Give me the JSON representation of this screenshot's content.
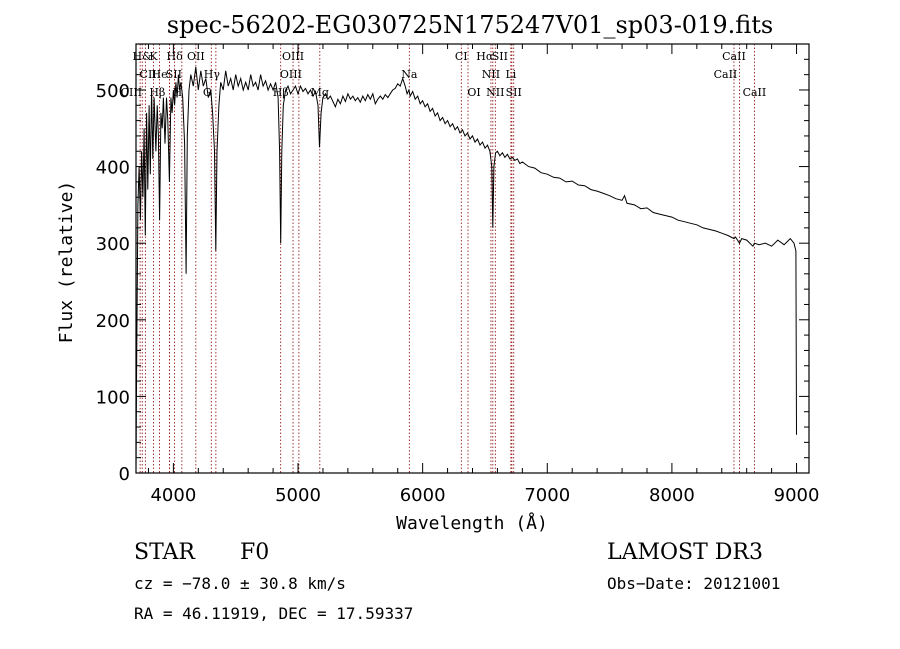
{
  "chart_data": {
    "type": "line",
    "title": "spec-56202-EG030725N175247V01_sp03-019.fits",
    "xlabel": "Wavelength (Å)",
    "ylabel": "Flux (relative)",
    "xlim": [
      3700,
      9100
    ],
    "ylim": [
      0,
      560
    ],
    "xticks": [
      4000,
      5000,
      6000,
      7000,
      8000,
      9000
    ],
    "yticks": [
      0,
      100,
      200,
      300,
      400,
      500
    ],
    "series": [
      {
        "name": "spectrum",
        "points": [
          [
            3700,
            5
          ],
          [
            3705,
            130
          ],
          [
            3715,
            350
          ],
          [
            3725,
            400
          ],
          [
            3735,
            330
          ],
          [
            3745,
            420
          ],
          [
            3755,
            360
          ],
          [
            3765,
            450
          ],
          [
            3775,
            310
          ],
          [
            3785,
            470
          ],
          [
            3795,
            370
          ],
          [
            3805,
            480
          ],
          [
            3815,
            390
          ],
          [
            3825,
            500
          ],
          [
            3835,
            410
          ],
          [
            3845,
            490
          ],
          [
            3860,
            420
          ],
          [
            3870,
            480
          ],
          [
            3880,
            440
          ],
          [
            3889,
            330
          ],
          [
            3900,
            470
          ],
          [
            3910,
            450
          ],
          [
            3920,
            490
          ],
          [
            3933,
            430
          ],
          [
            3945,
            490
          ],
          [
            3955,
            460
          ],
          [
            3968,
            380
          ],
          [
            3980,
            490
          ],
          [
            3990,
            470
          ],
          [
            4000,
            500
          ],
          [
            4010,
            480
          ],
          [
            4020,
            510
          ],
          [
            4030,
            490
          ],
          [
            4040,
            520
          ],
          [
            4050,
            500
          ],
          [
            4060,
            510
          ],
          [
            4075,
            490
          ],
          [
            4090,
            430
          ],
          [
            4102,
            260
          ],
          [
            4112,
            440
          ],
          [
            4125,
            500
          ],
          [
            4140,
            520
          ],
          [
            4160,
            505
          ],
          [
            4180,
            530
          ],
          [
            4200,
            500
          ],
          [
            4220,
            525
          ],
          [
            4240,
            505
          ],
          [
            4260,
            515
          ],
          [
            4280,
            490
          ],
          [
            4300,
            500
          ],
          [
            4315,
            470
          ],
          [
            4330,
            420
          ],
          [
            4340,
            290
          ],
          [
            4350,
            420
          ],
          [
            4365,
            480
          ],
          [
            4380,
            510
          ],
          [
            4400,
            500
          ],
          [
            4420,
            525
          ],
          [
            4440,
            505
          ],
          [
            4460,
            515
          ],
          [
            4480,
            500
          ],
          [
            4500,
            520
          ],
          [
            4520,
            505
          ],
          [
            4540,
            515
          ],
          [
            4560,
            500
          ],
          [
            4580,
            510
          ],
          [
            4600,
            500
          ],
          [
            4620,
            520
          ],
          [
            4640,
            505
          ],
          [
            4660,
            510
          ],
          [
            4680,
            500
          ],
          [
            4700,
            520
          ],
          [
            4720,
            505
          ],
          [
            4740,
            512
          ],
          [
            4760,
            500
          ],
          [
            4780,
            508
          ],
          [
            4800,
            500
          ],
          [
            4820,
            510
          ],
          [
            4840,
            490
          ],
          [
            4852,
            420
          ],
          [
            4861,
            300
          ],
          [
            4870,
            420
          ],
          [
            4882,
            480
          ],
          [
            4900,
            500
          ],
          [
            4920,
            505
          ],
          [
            4940,
            495
          ],
          [
            4960,
            500
          ],
          [
            4980,
            505
          ],
          [
            5000,
            495
          ],
          [
            5020,
            505
          ],
          [
            5040,
            498
          ],
          [
            5060,
            502
          ],
          [
            5080,
            495
          ],
          [
            5100,
            500
          ],
          [
            5120,
            492
          ],
          [
            5140,
            498
          ],
          [
            5160,
            480
          ],
          [
            5172,
            425
          ],
          [
            5185,
            470
          ],
          [
            5200,
            490
          ],
          [
            5220,
            495
          ],
          [
            5240,
            488
          ],
          [
            5260,
            492
          ],
          [
            5280,
            485
          ],
          [
            5300,
            478
          ],
          [
            5320,
            488
          ],
          [
            5340,
            482
          ],
          [
            5360,
            492
          ],
          [
            5380,
            485
          ],
          [
            5400,
            495
          ],
          [
            5420,
            488
          ],
          [
            5440,
            492
          ],
          [
            5460,
            486
          ],
          [
            5480,
            490
          ],
          [
            5500,
            484
          ],
          [
            5520,
            492
          ],
          [
            5540,
            486
          ],
          [
            5560,
            494
          ],
          [
            5580,
            488
          ],
          [
            5600,
            495
          ],
          [
            5620,
            482
          ],
          [
            5640,
            488
          ],
          [
            5660,
            492
          ],
          [
            5680,
            488
          ],
          [
            5700,
            494
          ],
          [
            5720,
            490
          ],
          [
            5740,
            495
          ],
          [
            5760,
            500
          ],
          [
            5780,
            502
          ],
          [
            5800,
            508
          ],
          [
            5820,
            505
          ],
          [
            5840,
            515
          ],
          [
            5860,
            505
          ],
          [
            5875,
            495
          ],
          [
            5890,
            500
          ],
          [
            5900,
            492
          ],
          [
            5920,
            498
          ],
          [
            5940,
            488
          ],
          [
            5960,
            492
          ],
          [
            5980,
            482
          ],
          [
            6000,
            486
          ],
          [
            6020,
            478
          ],
          [
            6040,
            482
          ],
          [
            6060,
            472
          ],
          [
            6080,
            476
          ],
          [
            6100,
            466
          ],
          [
            6120,
            470
          ],
          [
            6140,
            460
          ],
          [
            6160,
            464
          ],
          [
            6180,
            456
          ],
          [
            6200,
            460
          ],
          [
            6220,
            452
          ],
          [
            6240,
            456
          ],
          [
            6260,
            448
          ],
          [
            6280,
            452
          ],
          [
            6300,
            444
          ],
          [
            6320,
            448
          ],
          [
            6340,
            440
          ],
          [
            6360,
            444
          ],
          [
            6380,
            436
          ],
          [
            6400,
            440
          ],
          [
            6420,
            432
          ],
          [
            6440,
            436
          ],
          [
            6460,
            428
          ],
          [
            6480,
            432
          ],
          [
            6500,
            424
          ],
          [
            6520,
            428
          ],
          [
            6540,
            420
          ],
          [
            6555,
            400
          ],
          [
            6563,
            320
          ],
          [
            6572,
            400
          ],
          [
            6585,
            418
          ],
          [
            6600,
            420
          ],
          [
            6620,
            414
          ],
          [
            6640,
            418
          ],
          [
            6660,
            412
          ],
          [
            6680,
            416
          ],
          [
            6700,
            410
          ],
          [
            6720,
            412
          ],
          [
            6740,
            408
          ],
          [
            6760,
            410
          ],
          [
            6780,
            404
          ],
          [
            6800,
            406
          ],
          [
            6850,
            400
          ],
          [
            6900,
            398
          ],
          [
            6950,
            392
          ],
          [
            7000,
            390
          ],
          [
            7050,
            386
          ],
          [
            7100,
            385
          ],
          [
            7150,
            380
          ],
          [
            7200,
            381
          ],
          [
            7250,
            376
          ],
          [
            7300,
            375
          ],
          [
            7350,
            370
          ],
          [
            7400,
            368
          ],
          [
            7450,
            365
          ],
          [
            7500,
            362
          ],
          [
            7550,
            358
          ],
          [
            7600,
            356
          ],
          [
            7620,
            362
          ],
          [
            7640,
            352
          ],
          [
            7700,
            350
          ],
          [
            7750,
            345
          ],
          [
            7800,
            346
          ],
          [
            7850,
            340
          ],
          [
            7900,
            338
          ],
          [
            7950,
            336
          ],
          [
            8000,
            334
          ],
          [
            8050,
            330
          ],
          [
            8100,
            328
          ],
          [
            8150,
            326
          ],
          [
            8200,
            324
          ],
          [
            8250,
            320
          ],
          [
            8300,
            318
          ],
          [
            8350,
            316
          ],
          [
            8400,
            313
          ],
          [
            8450,
            310
          ],
          [
            8498,
            306
          ],
          [
            8510,
            308
          ],
          [
            8542,
            300
          ],
          [
            8560,
            306
          ],
          [
            8600,
            304
          ],
          [
            8650,
            296
          ],
          [
            8662,
            300
          ],
          [
            8700,
            298
          ],
          [
            8750,
            300
          ],
          [
            8800,
            296
          ],
          [
            8850,
            304
          ],
          [
            8900,
            298
          ],
          [
            8950,
            306
          ],
          [
            8980,
            300
          ],
          [
            8995,
            290
          ],
          [
            9000,
            50
          ]
        ]
      }
    ],
    "lines": [
      {
        "label": "H&",
        "x": 3750,
        "row": 0,
        "dx": 0
      },
      {
        "label": "K",
        "x": 3840,
        "row": 0,
        "dx": 0
      },
      {
        "label": "Hδ",
        "x": 4010,
        "row": 0,
        "dx": 0
      },
      {
        "label": "OII",
        "x": 4180,
        "row": 0,
        "dx": 0
      },
      {
        "label": "OIII",
        "x": 4960,
        "row": 0,
        "dx": 0
      },
      {
        "label": "CI",
        "x": 6310,
        "row": 0,
        "dx": 0
      },
      {
        "label": "Hα",
        "x": 6563,
        "row": 0,
        "dx": -8
      },
      {
        "label": "SII",
        "x": 6716,
        "row": 0,
        "dx": -12
      },
      {
        "label": "CaII",
        "x": 8498,
        "row": 0,
        "dx": 0
      },
      {
        "label": "CII",
        "x": 3733,
        "row": 1,
        "dx": 8
      },
      {
        "label": "He",
        "x": 3889,
        "row": 1,
        "dx": 0
      },
      {
        "label": "SII",
        "x": 4068,
        "row": 1,
        "dx": -8
      },
      {
        "label": "Hγ",
        "x": 4341,
        "row": 1,
        "dx": -4
      },
      {
        "label": "OIII",
        "x": 5007,
        "row": 1,
        "dx": -8
      },
      {
        "label": "Na",
        "x": 5893,
        "row": 1,
        "dx": 0
      },
      {
        "label": "NII",
        "x": 6548,
        "row": 1,
        "dx": 0
      },
      {
        "label": "Li",
        "x": 6708,
        "row": 1,
        "dx": 0
      },
      {
        "label": "CaII",
        "x": 8542,
        "row": 1,
        "dx": -14
      },
      {
        "label": "CIII",
        "x": 3775,
        "row": 2,
        "dx": -14
      },
      {
        "label": "Hβ",
        "x": 3968,
        "row": 2,
        "dx": -12
      },
      {
        "label": "H",
        "x": 3968,
        "row": 2,
        "dx": 8
      },
      {
        "label": "G",
        "x": 4304,
        "row": 2,
        "dx": -4
      },
      {
        "label": "Hβ",
        "x": 4861,
        "row": 2,
        "dx": 0
      },
      {
        "label": "Mg",
        "x": 5175,
        "row": 2,
        "dx": 0
      },
      {
        "label": "OI",
        "x": 6364,
        "row": 2,
        "dx": 6
      },
      {
        "label": "NII",
        "x": 6583,
        "row": 2,
        "dx": 0
      },
      {
        "label": "SII",
        "x": 6731,
        "row": 2,
        "dx": 0
      },
      {
        "label": "CaII",
        "x": 8662,
        "row": 2,
        "dx": 0
      }
    ],
    "line_color": "#8b0000"
  },
  "info": {
    "class": "STAR",
    "subclass": "F0",
    "survey": "LAMOST DR3",
    "cz": "cz = −78.0 ± 30.8 km/s",
    "obs_date": "Obs−Date: 20121001",
    "radec": "RA =  46.11919, DEC =  17.59337"
  }
}
